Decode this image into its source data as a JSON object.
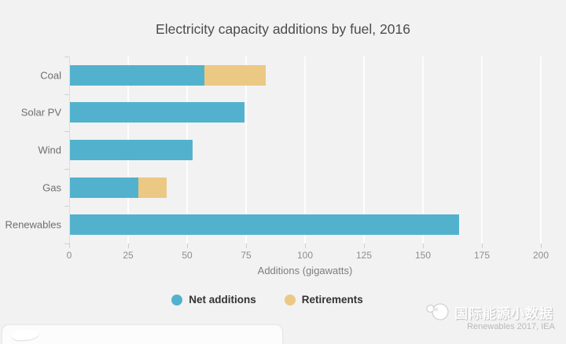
{
  "title": "Electricity capacity additions by fuel, 2016",
  "chart_data": {
    "type": "bar",
    "orientation": "horizontal",
    "stacked": true,
    "categories": [
      "Coal",
      "Solar PV",
      "Wind",
      "Gas",
      "Renewables"
    ],
    "series": [
      {
        "name": "Net additions",
        "color": "#52b2cd",
        "values": [
          57,
          74,
          52,
          29,
          165
        ]
      },
      {
        "name": "Retirements",
        "color": "#ebc883",
        "values": [
          26,
          0,
          0,
          12,
          0
        ]
      }
    ],
    "xlabel": "Additions (gigawatts)",
    "xlim": [
      0,
      200
    ],
    "xticks": [
      0,
      25,
      50,
      75,
      100,
      125,
      150,
      175,
      200
    ],
    "grid": true,
    "legend_position": "bottom"
  },
  "legend": {
    "items": [
      {
        "label": "Net additions",
        "color": "#52b2cd"
      },
      {
        "label": "Retirements",
        "color": "#ebc883"
      }
    ]
  },
  "watermark": {
    "text": "国际能源小数据",
    "logo": "panda-globe-logo"
  },
  "source": "Renewables 2017, IEA",
  "colors": {
    "background": "#f2f2f2",
    "net_additions": "#52b2cd",
    "retirements": "#ebc883",
    "gridline": "#ffffff",
    "title_text": "#4c4c4c",
    "category_text": "#6e6e6e",
    "tick_text": "#8e8e8e"
  }
}
